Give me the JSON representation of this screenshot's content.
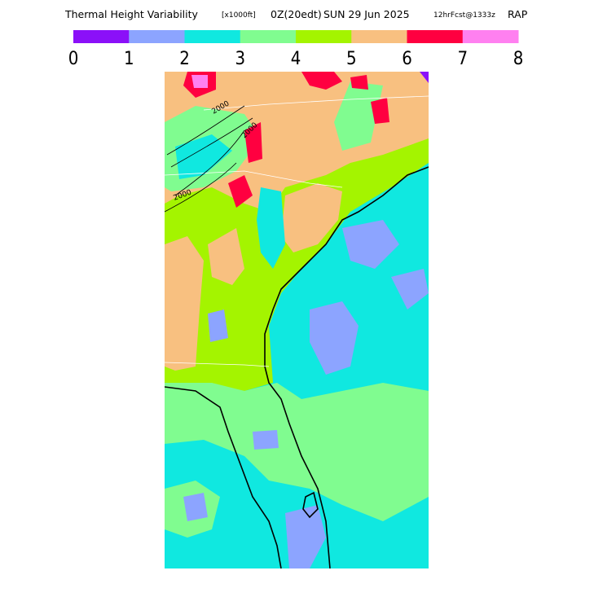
{
  "header": {
    "title": "Thermal Height Variability",
    "units": "[x1000ft]",
    "time": "0Z(20edt)",
    "date": "SUN 29 Jun 2025",
    "forecast": "12hrFcst@1333z",
    "model": "RAP"
  },
  "legend": {
    "ticks": [
      0,
      1,
      2,
      3,
      4,
      5,
      6,
      7,
      8
    ],
    "colors": [
      "#8b10f8",
      "#8ca4ff",
      "#10e8e0",
      "#80fc90",
      "#a4f400",
      "#f8c080",
      "#ff0040",
      "#ff80f0"
    ]
  },
  "contour_labels": [
    "2000",
    "2000",
    "2000"
  ]
}
